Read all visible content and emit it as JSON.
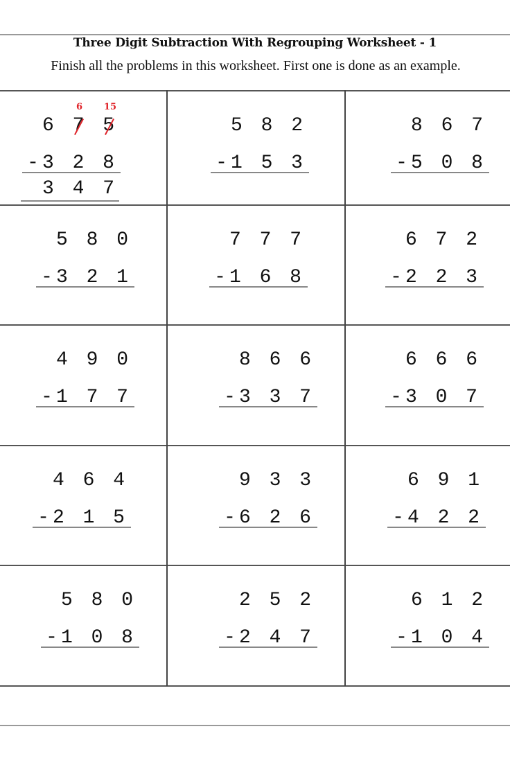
{
  "worksheet": {
    "title": "Three Digit Subtraction With Regrouping Worksheet - 1",
    "instructions": "Finish all the problems in this worksheet. First one is done as an example.",
    "example": {
      "minuend": "675",
      "subtrahend": "328",
      "answer": "347",
      "regroup_tens": "6",
      "regroup_ones": "15"
    },
    "problems": [
      [
        {
          "top": "675",
          "bottom": "328"
        },
        {
          "top": "582",
          "bottom": "153"
        },
        {
          "top": "867",
          "bottom": "508"
        }
      ],
      [
        {
          "top": "580",
          "bottom": "321"
        },
        {
          "top": "777",
          "bottom": "168"
        },
        {
          "top": "672",
          "bottom": "223"
        }
      ],
      [
        {
          "top": "490",
          "bottom": "177"
        },
        {
          "top": "866",
          "bottom": "337"
        },
        {
          "top": "666",
          "bottom": "307"
        }
      ],
      [
        {
          "top": "464",
          "bottom": "215"
        },
        {
          "top": "933",
          "bottom": "626"
        },
        {
          "top": "691",
          "bottom": "422"
        }
      ],
      [
        {
          "top": "580",
          "bottom": "108"
        },
        {
          "top": "252",
          "bottom": "247"
        },
        {
          "top": "612",
          "bottom": "104"
        }
      ]
    ],
    "accent_color": "#e0242a"
  }
}
